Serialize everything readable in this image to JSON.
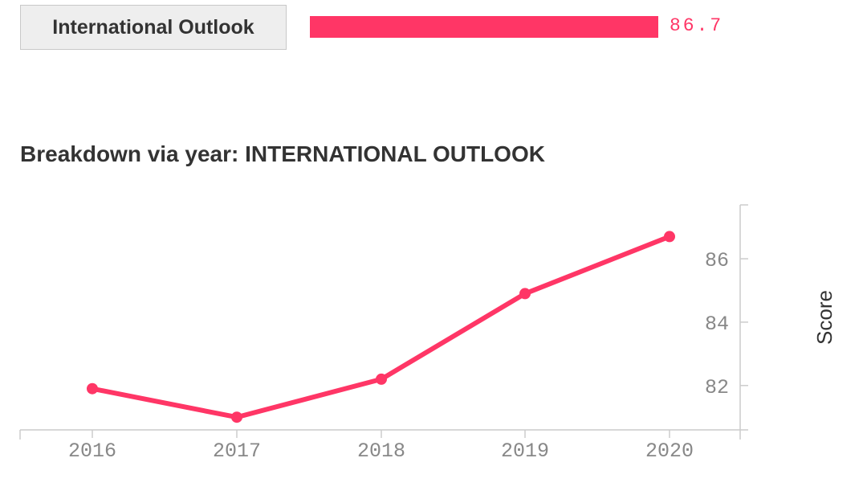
{
  "metric": {
    "button_label": "International Outlook",
    "score_display": "86.7",
    "score": 86.7,
    "score_max": 100
  },
  "colors": {
    "accent": "#ff3666",
    "axis": "#cccccc",
    "tick_text": "#888888",
    "title_text": "#333333"
  },
  "chart_data": {
    "type": "line",
    "title": "Breakdown via year: INTERNATIONAL OUTLOOK",
    "xlabel": "",
    "ylabel": "Score",
    "x": [
      "2016",
      "2017",
      "2018",
      "2019",
      "2020"
    ],
    "series": [
      {
        "values": [
          81.9,
          81.0,
          82.2,
          84.9,
          86.7
        ]
      }
    ],
    "yticks": [
      82,
      84,
      86
    ],
    "ylim": [
      80.6,
      87.7
    ],
    "grid": false,
    "y_axis_side": "right"
  }
}
